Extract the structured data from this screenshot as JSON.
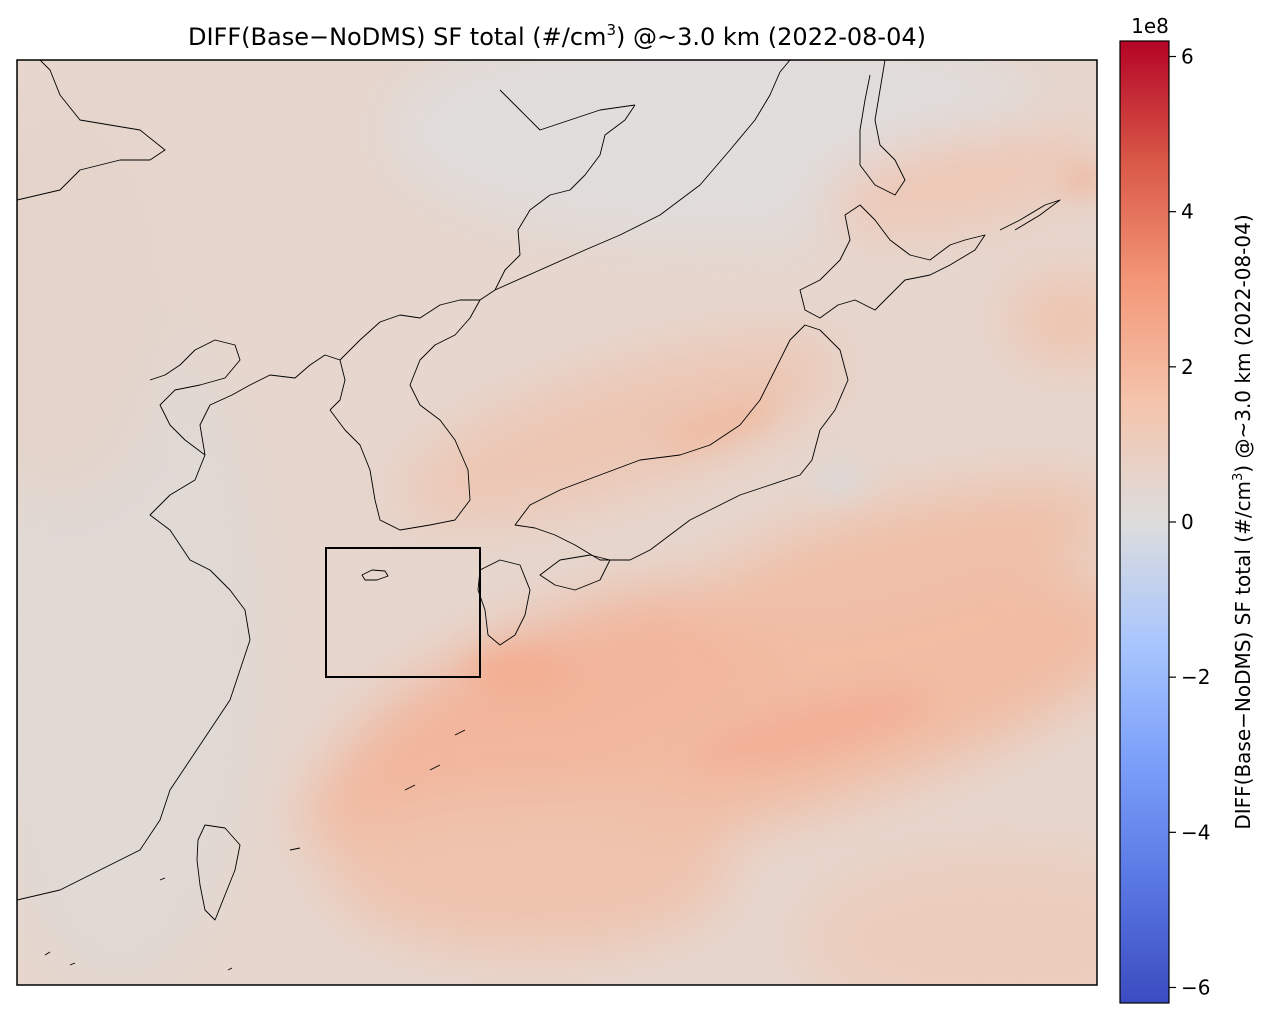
{
  "figure": {
    "title_prefix": "DIFF(Base−NoDMS) SF total (#/cm",
    "title_sup": "3",
    "title_suffix": ") @~3.0 km (2022-08-04)"
  },
  "colorbar": {
    "multiplier": "1e8",
    "label_prefix": "DIFF(Base−NoDMS) SF total (#/cm",
    "label_sup": "3",
    "label_suffix": ") @~3.0 km (2022-08-04)",
    "colormap": "coolwarm",
    "colors": {
      "low": "#3b4cc0",
      "mid": "#dddddd",
      "high": "#b40426"
    }
  },
  "chart_data": {
    "type": "heatmap",
    "value_range": [
      -6.2,
      6.2
    ],
    "ticks": [
      {
        "value": 6,
        "label": "6"
      },
      {
        "value": 4,
        "label": "4"
      },
      {
        "value": 2,
        "label": "2"
      },
      {
        "value": 0,
        "label": "0"
      },
      {
        "value": -2,
        "label": "−2"
      },
      {
        "value": -4,
        "label": "−4"
      },
      {
        "value": -6,
        "label": "−6"
      }
    ],
    "typical_field_range": [
      0.2,
      2.5
    ],
    "highlight_box": true
  }
}
